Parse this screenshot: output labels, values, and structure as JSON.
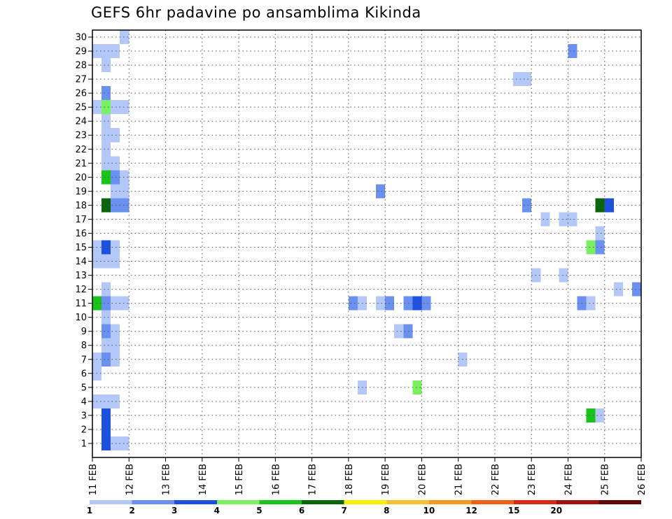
{
  "chart_data": {
    "type": "heatmap",
    "title": "GEFS 6hr padavine po ansamblima Kikinda",
    "xlabel": "",
    "ylabel": "",
    "x_tick_labels": [
      "11 FEB",
      "12 FEB",
      "13 FEB",
      "14 FEB",
      "15 FEB",
      "16 FEB",
      "17 FEB",
      "18 FEB",
      "19 FEB",
      "20 FEB",
      "21 FEB",
      "22 FEB",
      "23 FEB",
      "24 FEB",
      "25 FEB",
      "26 FEB"
    ],
    "x_range_days": [
      11,
      26
    ],
    "y_tick_labels": [
      "1",
      "2",
      "3",
      "4",
      "5",
      "6",
      "7",
      "8",
      "9",
      "10",
      "11",
      "12",
      "13",
      "14",
      "15",
      "16",
      "17",
      "18",
      "19",
      "20",
      "21",
      "22",
      "23",
      "24",
      "25",
      "26",
      "27",
      "28",
      "29",
      "30"
    ],
    "y_range": [
      0,
      30
    ],
    "grid": true,
    "legend": {
      "placement": "bottom",
      "labels": [
        "1",
        "2",
        "3",
        "4",
        "5",
        "6",
        "7",
        "8",
        "10",
        "12",
        "15",
        "20"
      ],
      "colors": [
        "#b3c8f8",
        "#6a90f0",
        "#1e50e0",
        "#78f060",
        "#18c418",
        "#0a640a",
        "#f8f000",
        "#f8c030",
        "#f89820",
        "#f06010",
        "#d82810",
        "#a01010",
        "#600808"
      ]
    },
    "cells": [
      {
        "member": 1,
        "day": 11.25,
        "level": 3
      },
      {
        "member": 1,
        "day": 11.5,
        "level": 1
      },
      {
        "member": 1,
        "day": 11.75,
        "level": 1
      },
      {
        "member": 2,
        "day": 11.25,
        "level": 3
      },
      {
        "member": 3,
        "day": 11.25,
        "level": 3
      },
      {
        "member": 3,
        "day": 24.5,
        "level": 5
      },
      {
        "member": 3,
        "day": 24.75,
        "level": 1
      },
      {
        "member": 4,
        "day": 11.0,
        "level": 1
      },
      {
        "member": 4,
        "day": 11.25,
        "level": 1
      },
      {
        "member": 4,
        "day": 11.5,
        "level": 1
      },
      {
        "member": 5,
        "day": 18.25,
        "level": 1
      },
      {
        "member": 5,
        "day": 19.75,
        "level": 4
      },
      {
        "member": 6,
        "day": 11.0,
        "level": 1
      },
      {
        "member": 7,
        "day": 11.0,
        "level": 1
      },
      {
        "member": 7,
        "day": 11.25,
        "level": 2
      },
      {
        "member": 7,
        "day": 11.5,
        "level": 1
      },
      {
        "member": 7,
        "day": 21.0,
        "level": 1
      },
      {
        "member": 8,
        "day": 11.25,
        "level": 1
      },
      {
        "member": 8,
        "day": 11.5,
        "level": 1
      },
      {
        "member": 9,
        "day": 11.25,
        "level": 2
      },
      {
        "member": 9,
        "day": 11.5,
        "level": 1
      },
      {
        "member": 9,
        "day": 19.25,
        "level": 1
      },
      {
        "member": 9,
        "day": 19.5,
        "level": 2
      },
      {
        "member": 10,
        "day": 11.25,
        "level": 1
      },
      {
        "member": 11,
        "day": 11.0,
        "level": 5
      },
      {
        "member": 11,
        "day": 11.25,
        "level": 2
      },
      {
        "member": 11,
        "day": 11.5,
        "level": 1
      },
      {
        "member": 11,
        "day": 11.75,
        "level": 1
      },
      {
        "member": 11,
        "day": 18.0,
        "level": 2
      },
      {
        "member": 11,
        "day": 18.25,
        "level": 1
      },
      {
        "member": 11,
        "day": 18.75,
        "level": 1
      },
      {
        "member": 11,
        "day": 19.0,
        "level": 2
      },
      {
        "member": 11,
        "day": 19.5,
        "level": 2
      },
      {
        "member": 11,
        "day": 19.75,
        "level": 3
      },
      {
        "member": 11,
        "day": 20.0,
        "level": 2
      },
      {
        "member": 11,
        "day": 24.25,
        "level": 2
      },
      {
        "member": 11,
        "day": 24.5,
        "level": 1
      },
      {
        "member": 12,
        "day": 11.25,
        "level": 1
      },
      {
        "member": 12,
        "day": 25.25,
        "level": 1
      },
      {
        "member": 12,
        "day": 25.75,
        "level": 2
      },
      {
        "member": 13,
        "day": 23.0,
        "level": 1
      },
      {
        "member": 13,
        "day": 23.75,
        "level": 1
      },
      {
        "member": 14,
        "day": 11.0,
        "level": 1
      },
      {
        "member": 14,
        "day": 11.25,
        "level": 1
      },
      {
        "member": 14,
        "day": 11.5,
        "level": 1
      },
      {
        "member": 15,
        "day": 11.0,
        "level": 1
      },
      {
        "member": 15,
        "day": 11.25,
        "level": 3
      },
      {
        "member": 15,
        "day": 11.5,
        "level": 1
      },
      {
        "member": 15,
        "day": 24.5,
        "level": 4
      },
      {
        "member": 15,
        "day": 24.75,
        "level": 2
      },
      {
        "member": 16,
        "day": 24.75,
        "level": 1
      },
      {
        "member": 17,
        "day": 23.25,
        "level": 1
      },
      {
        "member": 17,
        "day": 23.75,
        "level": 1
      },
      {
        "member": 17,
        "day": 24.0,
        "level": 1
      },
      {
        "member": 18,
        "day": 11.25,
        "level": 6
      },
      {
        "member": 18,
        "day": 11.5,
        "level": 2
      },
      {
        "member": 18,
        "day": 11.75,
        "level": 2
      },
      {
        "member": 18,
        "day": 22.75,
        "level": 2
      },
      {
        "member": 18,
        "day": 24.75,
        "level": 6
      },
      {
        "member": 18,
        "day": 25.0,
        "level": 3
      },
      {
        "member": 19,
        "day": 11.5,
        "level": 1
      },
      {
        "member": 19,
        "day": 11.75,
        "level": 1
      },
      {
        "member": 19,
        "day": 18.75,
        "level": 2
      },
      {
        "member": 20,
        "day": 11.25,
        "level": 5
      },
      {
        "member": 20,
        "day": 11.5,
        "level": 2
      },
      {
        "member": 20,
        "day": 11.75,
        "level": 1
      },
      {
        "member": 21,
        "day": 11.25,
        "level": 1
      },
      {
        "member": 21,
        "day": 11.5,
        "level": 1
      },
      {
        "member": 22,
        "day": 11.25,
        "level": 1
      },
      {
        "member": 23,
        "day": 11.25,
        "level": 1
      },
      {
        "member": 23,
        "day": 11.5,
        "level": 1
      },
      {
        "member": 24,
        "day": 11.25,
        "level": 1
      },
      {
        "member": 25,
        "day": 11.0,
        "level": 1
      },
      {
        "member": 25,
        "day": 11.25,
        "level": 4
      },
      {
        "member": 25,
        "day": 11.5,
        "level": 1
      },
      {
        "member": 25,
        "day": 11.75,
        "level": 1
      },
      {
        "member": 26,
        "day": 11.25,
        "level": 2
      },
      {
        "member": 27,
        "day": 22.5,
        "level": 1
      },
      {
        "member": 27,
        "day": 22.75,
        "level": 1
      },
      {
        "member": 28,
        "day": 11.25,
        "level": 1
      },
      {
        "member": 29,
        "day": 11.0,
        "level": 1
      },
      {
        "member": 29,
        "day": 11.25,
        "level": 1
      },
      {
        "member": 29,
        "day": 11.5,
        "level": 1
      },
      {
        "member": 29,
        "day": 24.0,
        "level": 2
      },
      {
        "member": 30,
        "day": 11.75,
        "level": 1
      }
    ]
  }
}
